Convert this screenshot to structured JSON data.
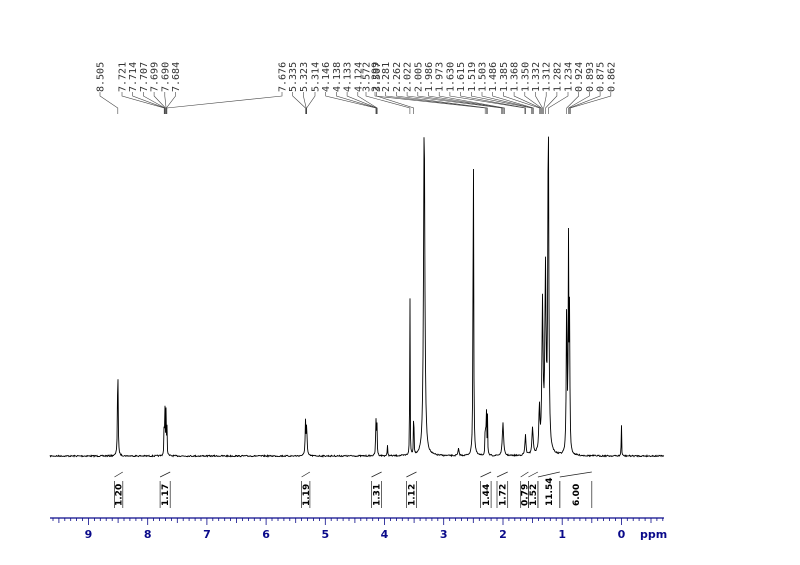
{
  "chart_data": {
    "type": "line",
    "title": "",
    "xlabel": "ppm",
    "ylabel": "",
    "x_axis": {
      "reversed": true,
      "range": [
        9.65,
        -0.72
      ],
      "major_ticks": [
        9,
        8,
        7,
        6,
        5,
        4,
        3,
        2,
        1,
        0
      ]
    },
    "peak_labels": [
      {
        "text": "8.505",
        "ppm": 8.505
      },
      {
        "text": "7.721",
        "ppm": 7.721
      },
      {
        "text": "7.714",
        "ppm": 7.714
      },
      {
        "text": "7.707",
        "ppm": 7.707
      },
      {
        "text": "7.699",
        "ppm": 7.699
      },
      {
        "text": "7.690",
        "ppm": 7.69
      },
      {
        "text": "7.684",
        "ppm": 7.684
      },
      {
        "text": "7.676",
        "ppm": 7.676
      },
      {
        "text": "5.335",
        "ppm": 5.335
      },
      {
        "text": "5.323",
        "ppm": 5.323
      },
      {
        "text": "5.314",
        "ppm": 5.314
      },
      {
        "text": "4.146",
        "ppm": 4.146
      },
      {
        "text": "4.138",
        "ppm": 4.138
      },
      {
        "text": "4.133",
        "ppm": 4.133
      },
      {
        "text": "4.124",
        "ppm": 4.124
      },
      {
        "text": "3.572",
        "ppm": 3.572
      },
      {
        "text": "3.507",
        "ppm": 3.507
      },
      {
        "text": "2.299",
        "ppm": 2.299
      },
      {
        "text": "2.281",
        "ppm": 2.281
      },
      {
        "text": "2.262",
        "ppm": 2.262
      },
      {
        "text": "2.022",
        "ppm": 2.022
      },
      {
        "text": "2.005",
        "ppm": 2.005
      },
      {
        "text": "1.986",
        "ppm": 1.986
      },
      {
        "text": "1.973",
        "ppm": 1.973
      },
      {
        "text": "1.630",
        "ppm": 1.63
      },
      {
        "text": "1.615",
        "ppm": 1.615
      },
      {
        "text": "1.519",
        "ppm": 1.519
      },
      {
        "text": "1.503",
        "ppm": 1.503
      },
      {
        "text": "1.486",
        "ppm": 1.486
      },
      {
        "text": "1.385",
        "ppm": 1.385
      },
      {
        "text": "1.368",
        "ppm": 1.368
      },
      {
        "text": "1.350",
        "ppm": 1.35
      },
      {
        "text": "1.332",
        "ppm": 1.332
      },
      {
        "text": "1.312",
        "ppm": 1.312
      },
      {
        "text": "1.282",
        "ppm": 1.282
      },
      {
        "text": "1.234",
        "ppm": 1.234
      },
      {
        "text": "0.924",
        "ppm": 0.924
      },
      {
        "text": "0.893",
        "ppm": 0.893
      },
      {
        "text": "0.875",
        "ppm": 0.875
      },
      {
        "text": "0.862",
        "ppm": 0.862
      }
    ],
    "integrals": [
      {
        "value": "1.20",
        "from": 8.56,
        "to": 8.42
      },
      {
        "value": "1.17",
        "from": 7.79,
        "to": 7.62
      },
      {
        "value": "1.19",
        "from": 5.4,
        "to": 5.26
      },
      {
        "value": "1.31",
        "from": 4.22,
        "to": 4.05
      },
      {
        "value": "1.12",
        "from": 3.63,
        "to": 3.46
      },
      {
        "value": "1.44",
        "from": 2.38,
        "to": 2.2
      },
      {
        "value": "1.72",
        "from": 2.1,
        "to": 1.92
      },
      {
        "value": "0.79",
        "from": 1.7,
        "to": 1.57
      },
      {
        "value": "1.52",
        "from": 1.57,
        "to": 1.41
      },
      {
        "value": "11.54",
        "from": 1.41,
        "to": 1.04
      },
      {
        "value": "6.00",
        "from": 1.04,
        "to": 0.5
      }
    ],
    "peaks": [
      {
        "ppm": 8.505,
        "height": 0.3,
        "width": 0.006
      },
      {
        "ppm": 7.721,
        "height": 0.14,
        "width": 0.004
      },
      {
        "ppm": 7.706,
        "height": 0.15,
        "width": 0.004
      },
      {
        "ppm": 7.69,
        "height": 0.13,
        "width": 0.004
      },
      {
        "ppm": 7.676,
        "height": 0.1,
        "width": 0.004
      },
      {
        "ppm": 5.335,
        "height": 0.1,
        "width": 0.007
      },
      {
        "ppm": 5.315,
        "height": 0.09,
        "width": 0.007
      },
      {
        "ppm": 4.146,
        "height": 0.11,
        "width": 0.005
      },
      {
        "ppm": 4.13,
        "height": 0.12,
        "width": 0.005
      },
      {
        "ppm": 3.95,
        "height": 0.03,
        "width": 0.005
      },
      {
        "ppm": 3.572,
        "height": 0.69,
        "width": 0.003
      },
      {
        "ppm": 3.507,
        "height": 0.18,
        "width": 0.004
      },
      {
        "ppm": 3.33,
        "height": 1.0,
        "width": 0.013
      },
      {
        "ppm": 2.75,
        "height": 0.02,
        "width": 0.01
      },
      {
        "ppm": 2.5,
        "height": 1.0,
        "width": 0.006
      },
      {
        "ppm": 2.299,
        "height": 0.13,
        "width": 0.004
      },
      {
        "ppm": 2.281,
        "height": 0.2,
        "width": 0.004
      },
      {
        "ppm": 2.262,
        "height": 0.12,
        "width": 0.004
      },
      {
        "ppm": 2.0,
        "height": 0.1,
        "width": 0.012
      },
      {
        "ppm": 1.62,
        "height": 0.06,
        "width": 0.01
      },
      {
        "ppm": 1.5,
        "height": 0.08,
        "width": 0.012
      },
      {
        "ppm": 1.385,
        "height": 0.13,
        "width": 0.01
      },
      {
        "ppm": 1.332,
        "height": 0.43,
        "width": 0.012
      },
      {
        "ppm": 1.282,
        "height": 0.52,
        "width": 0.012
      },
      {
        "ppm": 1.234,
        "height": 1.0,
        "width": 0.01
      },
      {
        "ppm": 0.924,
        "height": 0.45,
        "width": 0.008
      },
      {
        "ppm": 0.893,
        "height": 0.6,
        "width": 0.006
      },
      {
        "ppm": 0.875,
        "height": 0.4,
        "width": 0.006
      },
      {
        "ppm": 0.0,
        "height": 0.14,
        "width": 0.003
      }
    ]
  },
  "colors": {
    "axis": "#0a0a8a",
    "trace": "#000000",
    "labels": "#333333"
  }
}
